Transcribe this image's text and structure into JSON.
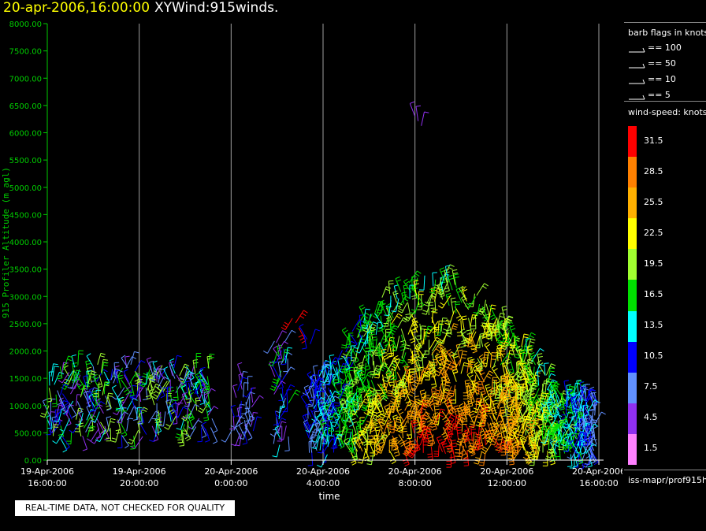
{
  "header": {
    "date_label": "20-apr-2006,16:00:00",
    "product_label": "XYWind:915winds."
  },
  "chart_data": {
    "type": "scatter",
    "xlabel": "time",
    "ylabel": "915 Profiler Altitude (m agl)",
    "ylim": [
      0,
      8000
    ],
    "yticks": [
      "0.00",
      "500.00",
      "1000.00",
      "1500.00",
      "2000.00",
      "2500.00",
      "3000.00",
      "3500.00",
      "4000.00",
      "4500.00",
      "5000.00",
      "5500.00",
      "6000.00",
      "6500.00",
      "7000.00",
      "7500.00",
      "8000.00"
    ],
    "xlim": [
      "2006-04-19T16:00",
      "2006-04-20T16:00"
    ],
    "xticks": [
      {
        "date": "19-Apr-2006",
        "time": "16:00:00"
      },
      {
        "date": "19-Apr-2006",
        "time": "20:00:00"
      },
      {
        "date": "20-Apr-2006",
        "time": "0:00:00"
      },
      {
        "date": "20-Apr-2006",
        "time": "4:00:00"
      },
      {
        "date": "20-Apr-2006",
        "time": "8:00:00"
      },
      {
        "date": "20-Apr-2006",
        "time": "12:00:00"
      },
      {
        "date": "20-Apr-2006",
        "time": "16:00:00"
      }
    ],
    "grid": "vertical",
    "clusters": [
      {
        "t_start": "2006-04-19T16:00",
        "t_end": "2006-04-19T23:10",
        "alt_min": 420,
        "alt_max": 1750,
        "speed_min": 4.5,
        "speed_max": 19.5
      },
      {
        "t_start": "2006-04-20T00:00",
        "t_end": "2006-04-20T01:00",
        "alt_min": 400,
        "alt_max": 1500,
        "speed_min": 4.5,
        "speed_max": 10.5
      },
      {
        "t_start": "2006-04-20T01:50",
        "t_end": "2006-04-20T02:30",
        "alt_min": 200,
        "alt_max": 2200,
        "speed_min": 4.5,
        "speed_max": 16.5
      },
      {
        "t_start": "2006-04-20T03:20",
        "t_end": "2006-04-20T15:50",
        "alt_min": 100,
        "alt_max": 3400,
        "speed_min": 7.5,
        "speed_max": 31.5
      }
    ],
    "isolated_points": [
      {
        "t": "2006-04-20T02:40",
        "alt": 2600,
        "speed": 31.5
      },
      {
        "t": "2006-04-20T03:10",
        "alt": 2300,
        "speed": 10.5
      },
      {
        "t": "2006-04-20T08:00",
        "alt": 6300,
        "speed": 4.5
      }
    ],
    "legend": {
      "barb_title": "barb flags in knots",
      "barbs": [
        "== 100",
        "== 50",
        "== 10",
        "== 5"
      ],
      "speed_title": "wind-speed: knots",
      "speed_scale": [
        {
          "value": "31.5",
          "color": "#ff0000"
        },
        {
          "value": "28.5",
          "color": "#ff8000"
        },
        {
          "value": "25.5",
          "color": "#ffb000"
        },
        {
          "value": "22.5",
          "color": "#ffff00"
        },
        {
          "value": "19.5",
          "color": "#a0ff30"
        },
        {
          "value": "16.5",
          "color": "#00e000"
        },
        {
          "value": "13.5",
          "color": "#00ffff"
        },
        {
          "value": "10.5",
          "color": "#0000ff"
        },
        {
          "value": "7.5",
          "color": "#6090ff"
        },
        {
          "value": "4.5",
          "color": "#9030f0"
        },
        {
          "value": "1.5",
          "color": "#ff80ff"
        }
      ]
    }
  },
  "footer": {
    "quality_notice": "REAL-TIME DATA, NOT CHECKED FOR QUALITY",
    "source": "iss-mapr/prof915h"
  }
}
